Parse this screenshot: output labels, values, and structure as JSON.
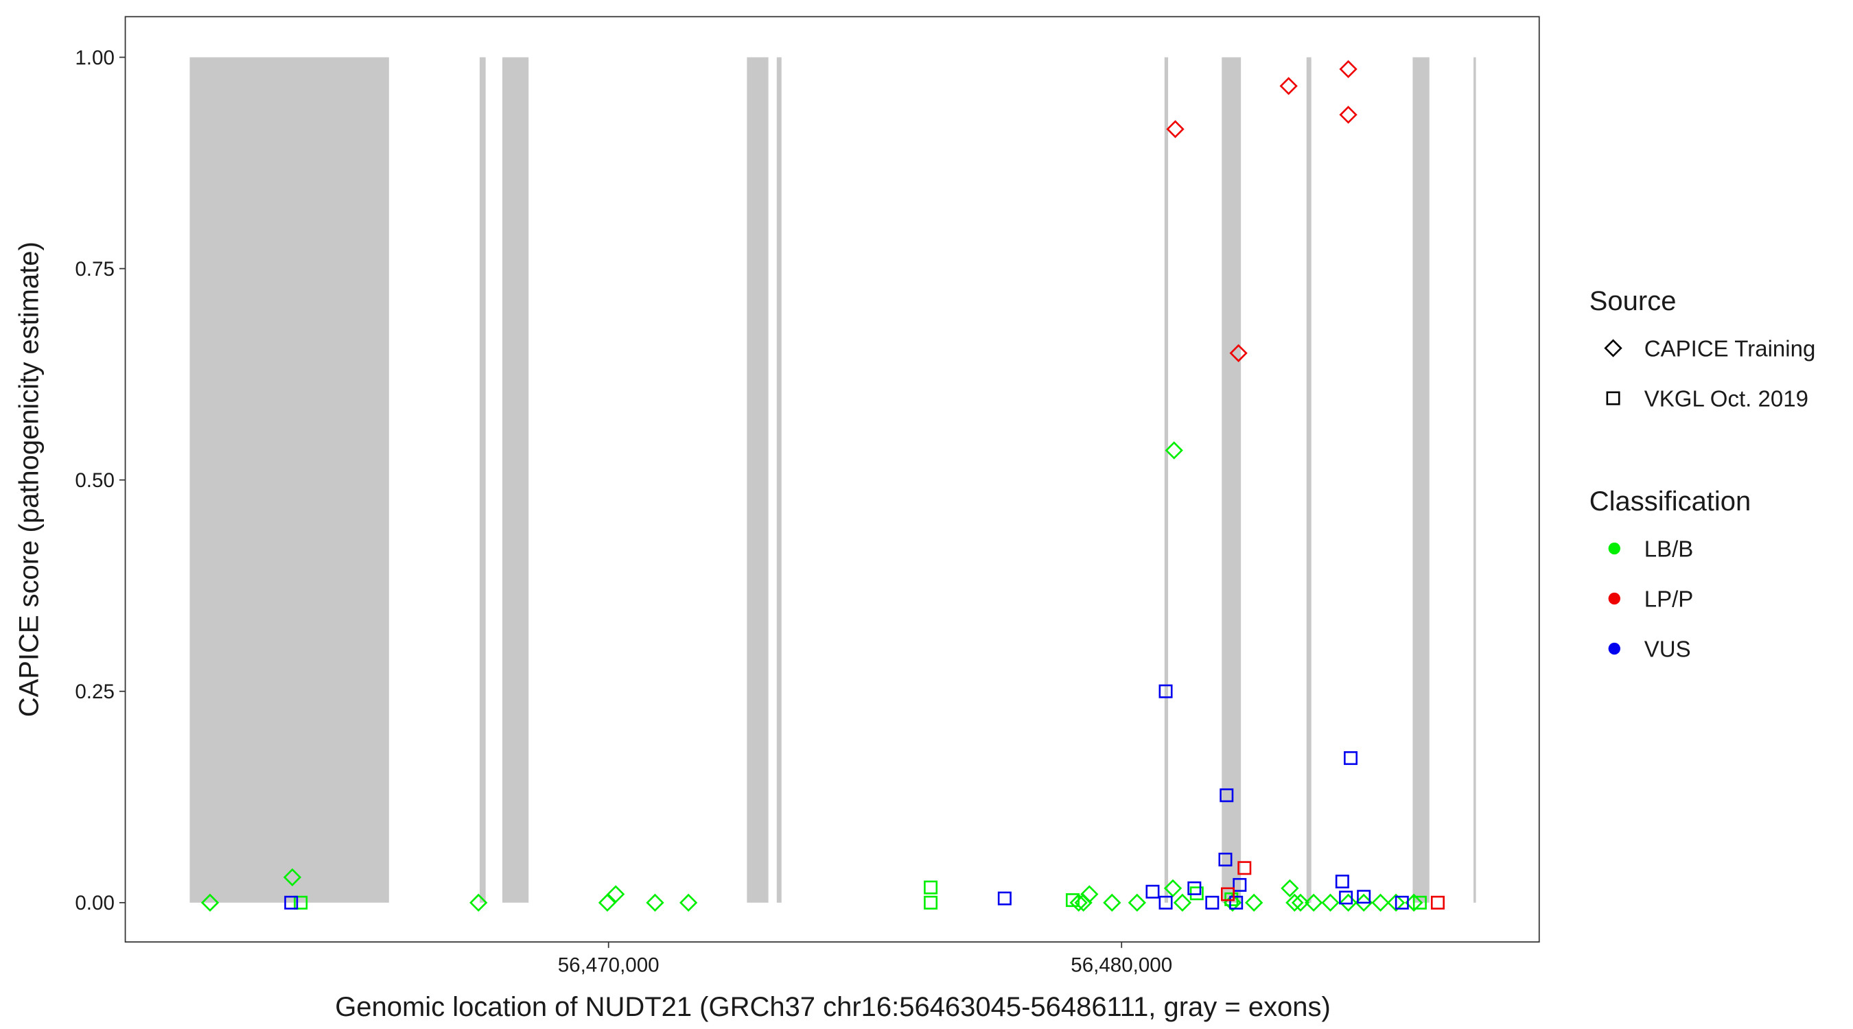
{
  "chart_data": {
    "type": "scatter",
    "x_label": "Genomic location of NUDT21 (GRCh37 chr16:56463045-56486111, gray = exons)",
    "y_label": "CAPICE score (pathogenicity estimate)",
    "xlim": [
      56460581,
      56488140
    ],
    "ylim": [
      -0.0465,
      1.048
    ],
    "xticks": [
      {
        "value": 56470000,
        "label": "56,470,000"
      },
      {
        "value": 56480000,
        "label": "56,480,000"
      }
    ],
    "yticks": [
      {
        "value": 0,
        "label": "0.00"
      },
      {
        "value": 0.25,
        "label": "0.25"
      },
      {
        "value": 0.5,
        "label": "0.50"
      },
      {
        "value": 0.75,
        "label": "0.75"
      },
      {
        "value": 1,
        "label": "1.00"
      }
    ],
    "grid": false,
    "exon_color": "#c8c8c8",
    "exons": [
      [
        56461837,
        56465721
      ],
      [
        56467488,
        56467605
      ],
      [
        56467930,
        56468442
      ],
      [
        56472698,
        56473116
      ],
      [
        56473279,
        56473372
      ],
      [
        56480837,
        56480907
      ],
      [
        56481953,
        56482326
      ],
      [
        56483605,
        56483698
      ],
      [
        56485674,
        56486000
      ],
      [
        56486860,
        56486907
      ]
    ],
    "legend": {
      "source_title": "Source",
      "sources": [
        {
          "label": "CAPICE Training",
          "shape": "diamond"
        },
        {
          "label": "VKGL Oct. 2019",
          "shape": "square"
        }
      ],
      "classification_title": "Classification",
      "classifications": [
        {
          "label": "LB/B",
          "color": "#00ee00"
        },
        {
          "label": "LP/P",
          "color": "#ee0000"
        },
        {
          "label": "VUS",
          "color": "#0000ee"
        }
      ]
    },
    "series": [
      {
        "shape": "diamond",
        "color": "#00ee00",
        "x": [
          56462233,
          56463837,
          56467465,
          56469977,
          56470140,
          56470907,
          56471558,
          56479163,
          56479256,
          56479372,
          56479814,
          56480302,
          56481023,
          56481000,
          56481186,
          56482163,
          56482581,
          56483279,
          56483372,
          56483488,
          56483744,
          56484070,
          56484419,
          56484721,
          56485047,
          56485349,
          56485698
        ],
        "values": [
          0,
          0.03,
          0,
          0,
          0.01,
          0,
          0,
          0,
          0,
          0.01,
          0,
          0,
          0.535,
          0.017,
          0,
          0,
          0,
          0.017,
          0,
          0,
          0,
          0,
          0,
          0,
          0,
          0,
          0
        ]
      },
      {
        "shape": "diamond",
        "color": "#ee0000",
        "x": [
          56481047,
          56482279,
          56483256,
          56484419,
          56484419
        ],
        "values": [
          0.915,
          0.65,
          0.966,
          0.986,
          0.932
        ]
      },
      {
        "shape": "square",
        "color": "#00ee00",
        "x": [
          56464000,
          56476279,
          56476279,
          56479047,
          56481465,
          56482140,
          56485814
        ],
        "values": [
          0,
          0.018,
          0,
          0.003,
          0.011,
          0.004,
          0
        ]
      },
      {
        "shape": "square",
        "color": "#0000ee",
        "x": [
          56463814,
          56477721,
          56480605,
          56480860,
          56480860,
          56481419,
          56481767,
          56482023,
          56482047,
          56482302,
          56482233,
          56484302,
          56484372,
          56484465,
          56484721,
          56485465
        ],
        "values": [
          0,
          0.005,
          0.013,
          0.25,
          0,
          0.017,
          0,
          0.051,
          0.127,
          0.021,
          0,
          0.025,
          0.006,
          0.171,
          0.007,
          0
        ]
      },
      {
        "shape": "square",
        "color": "#ee0000",
        "x": [
          56482070,
          56482395,
          56486163
        ],
        "values": [
          0.01,
          0.041,
          0
        ]
      }
    ]
  }
}
